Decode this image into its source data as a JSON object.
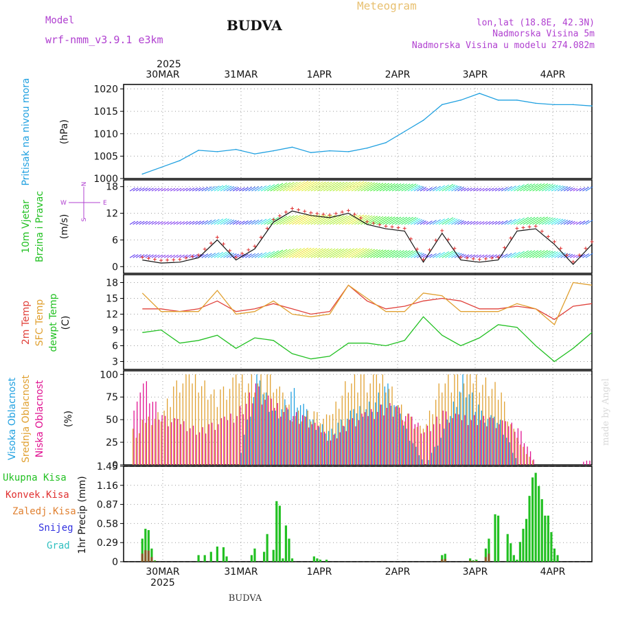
{
  "header": {
    "model_label": "Model",
    "model_value": "wrf-nmm_v3.9.1  e3km",
    "city": "BUDVA",
    "subtitle": "Meteogram",
    "coords": "lon,lat (18.8E, 42.3N)",
    "elev": "Nadmorska Visina 5m",
    "model_elev": "Nadmorska Visina u modelu 274.082m"
  },
  "footer": {
    "city": "BUDVA",
    "credit": "made by Angel"
  },
  "colors": {
    "pressure": "#1fa0e0",
    "temp2m": "#e0403a",
    "sfc": "#e0a030",
    "dew": "#22c022",
    "high": "#1fa0e0",
    "mid": "#e0a030",
    "low": "#e01090",
    "total": "#22c022",
    "conv": "#e03030",
    "strat": "#e08030",
    "snow": "#3030e0",
    "grad": "#30c0c0"
  },
  "chart_data": [
    {
      "type": "line",
      "id": "pressure",
      "ylabel_main": "Pritisak na nivou mora",
      "unit": "(hPa)",
      "ylim": [
        1000,
        1021
      ],
      "yticks": [
        "1000",
        "1005",
        "1010",
        "1015",
        "1020"
      ],
      "top_labels": {
        "year": "2025",
        "days": [
          "30MAR",
          "31MAR",
          "1APR",
          "2APR",
          "3APR",
          "4APR"
        ]
      },
      "x_hours": [
        0,
        6,
        12,
        18,
        24,
        30,
        36,
        42,
        48,
        54,
        60,
        66,
        72,
        78,
        84,
        90,
        96,
        102,
        108,
        114,
        120,
        126,
        132,
        138,
        144
      ],
      "values": [
        1001.0,
        1002.5,
        1004.0,
        1006.3,
        1006.0,
        1006.5,
        1005.5,
        1006.2,
        1007.0,
        1005.8,
        1006.2,
        1006.0,
        1006.8,
        1008.0,
        1010.5,
        1013.0,
        1016.5,
        1017.5,
        1019.0,
        1017.5,
        1017.5,
        1016.8,
        1016.5,
        1016.5,
        1016.2
      ]
    },
    {
      "type": "line",
      "id": "wind",
      "ylabel_main": "10m Vjetar",
      "ylabel_sub": "Brzina i Pravac",
      "unit": "(m/s)",
      "ylim": [
        -1.5,
        19.5
      ],
      "yticks": [
        "0",
        "6",
        "12",
        "18"
      ],
      "compass": {
        "n": "N",
        "s": "S",
        "w": "W",
        "e": "E"
      },
      "x_hours": [
        0,
        6,
        12,
        18,
        24,
        30,
        36,
        42,
        48,
        54,
        60,
        66,
        72,
        78,
        84,
        90,
        96,
        102,
        108,
        114,
        120,
        126,
        132,
        138,
        144
      ],
      "values": [
        1.5,
        0.8,
        1.0,
        2.0,
        6.0,
        1.5,
        4.0,
        10.0,
        12.5,
        11.5,
        11.0,
        12.0,
        9.5,
        8.5,
        8.0,
        1.0,
        7.5,
        1.5,
        1.0,
        1.5,
        8.0,
        8.5,
        5.0,
        0.5,
        5.0
      ]
    },
    {
      "type": "line",
      "id": "temperature",
      "ylabel_lines": [
        "2m Temp",
        "SFC Temp",
        "dewpt Temp"
      ],
      "unit": "(C)",
      "ylim": [
        1.5,
        19.5
      ],
      "yticks": [
        "3",
        "6",
        "9",
        "12",
        "15",
        "18"
      ],
      "x_hours": [
        0,
        6,
        12,
        18,
        24,
        30,
        36,
        42,
        48,
        54,
        60,
        66,
        72,
        78,
        84,
        90,
        96,
        102,
        108,
        114,
        120,
        126,
        132,
        138,
        144
      ],
      "series": [
        {
          "name": "2m Temp",
          "values": [
            13.0,
            13.0,
            12.5,
            13.0,
            14.5,
            12.5,
            13.0,
            14.0,
            13.0,
            12.0,
            12.5,
            17.5,
            14.5,
            13.0,
            13.5,
            14.5,
            15.0,
            14.5,
            13.0,
            13.0,
            13.5,
            13.0,
            11.0,
            13.5,
            14.0
          ]
        },
        {
          "name": "SFC Temp",
          "values": [
            16.0,
            12.5,
            12.5,
            12.5,
            16.5,
            12.0,
            12.5,
            14.5,
            12.0,
            11.5,
            12.0,
            17.5,
            15.0,
            12.5,
            12.5,
            16.0,
            15.5,
            12.5,
            12.5,
            12.5,
            14.0,
            13.0,
            10.0,
            18.0,
            17.5
          ]
        },
        {
          "name": "dewpt Temp",
          "values": [
            8.5,
            9.0,
            6.5,
            7.0,
            8.0,
            5.5,
            7.5,
            7.0,
            4.5,
            3.5,
            4.0,
            6.5,
            6.5,
            6.0,
            7.0,
            11.5,
            8.0,
            6.0,
            7.5,
            10.0,
            9.5,
            6.0,
            3.0,
            5.5,
            8.5
          ]
        }
      ]
    },
    {
      "type": "bar",
      "id": "cloud",
      "ylabel_lines": [
        "Visoka Oblacnost",
        "Srednja Oblacnost",
        "Niska Oblacnost"
      ],
      "unit": "(%)",
      "ylim": [
        0,
        104
      ],
      "yticks": [
        "0",
        "25",
        "50",
        "75",
        "100"
      ],
      "x_hours": [
        0,
        6,
        12,
        18,
        24,
        30,
        36,
        42,
        48,
        54,
        60,
        66,
        72,
        78,
        84,
        90,
        96,
        102,
        108,
        114,
        120,
        126,
        132,
        138,
        144
      ],
      "series": [
        {
          "name": "Srednja Oblacnost",
          "values": [
            50,
            60,
            100,
            100,
            80,
            100,
            100,
            100,
            60,
            60,
            55,
            100,
            100,
            100,
            60,
            40,
            100,
            100,
            100,
            90,
            30,
            0,
            0,
            0,
            0
          ]
        },
        {
          "name": "Niska Oblacnost",
          "values": [
            100,
            55,
            50,
            40,
            50,
            60,
            90,
            70,
            60,
            50,
            30,
            50,
            60,
            70,
            60,
            40,
            60,
            55,
            55,
            50,
            45,
            0,
            0,
            0,
            7
          ]
        },
        {
          "name": "Visoka Oblacnost",
          "values": [
            0,
            0,
            0,
            0,
            0,
            0,
            100,
            60,
            85,
            50,
            40,
            60,
            70,
            90,
            40,
            0,
            40,
            100,
            60,
            50,
            0,
            0,
            0,
            0,
            0
          ]
        }
      ]
    },
    {
      "type": "bar",
      "id": "precip",
      "ylabel_main": "1hr Precip",
      "unit": "(mm)",
      "legend": [
        "Ukupna Kisa",
        "Konvek.Kisa",
        "Zaledj.Kisa",
        "Snijeg",
        "Grad"
      ],
      "ylim": [
        0,
        1.45
      ],
      "yticks": [
        "0",
        "0.29",
        "0.58",
        "0.87",
        "1.16",
        "1.45"
      ],
      "bottom_labels": {
        "year": "2025",
        "days": [
          "30MAR",
          "31MAR",
          "1APR",
          "2APR",
          "3APR",
          "4APR"
        ]
      },
      "x_hours": [
        0,
        1,
        2,
        3,
        4,
        18,
        20,
        22,
        24,
        26,
        27,
        35,
        36,
        39,
        40,
        42,
        43,
        44,
        45,
        46,
        47,
        48,
        55,
        56,
        57,
        59,
        96,
        97,
        105,
        106,
        107,
        110,
        111,
        113,
        114,
        117,
        118,
        119,
        120,
        121,
        122,
        123,
        124,
        125,
        126,
        127,
        128,
        129,
        130,
        131,
        132,
        133
      ],
      "values": [
        0.35,
        0.5,
        0.48,
        0.2,
        0.02,
        0.1,
        0.1,
        0.15,
        0.23,
        0.22,
        0.08,
        0.1,
        0.2,
        0.15,
        0.42,
        0.18,
        0.92,
        0.85,
        0.05,
        0.55,
        0.35,
        0.05,
        0.08,
        0.05,
        0.03,
        0.03,
        0.1,
        0.12,
        0.05,
        0.02,
        0.03,
        0.2,
        0.35,
        0.72,
        0.7,
        0.42,
        0.28,
        0.1,
        0.03,
        0.3,
        0.5,
        0.65,
        1.0,
        1.28,
        1.35,
        1.15,
        0.95,
        0.7,
        0.7,
        0.45,
        0.2,
        0.1
      ]
    }
  ]
}
